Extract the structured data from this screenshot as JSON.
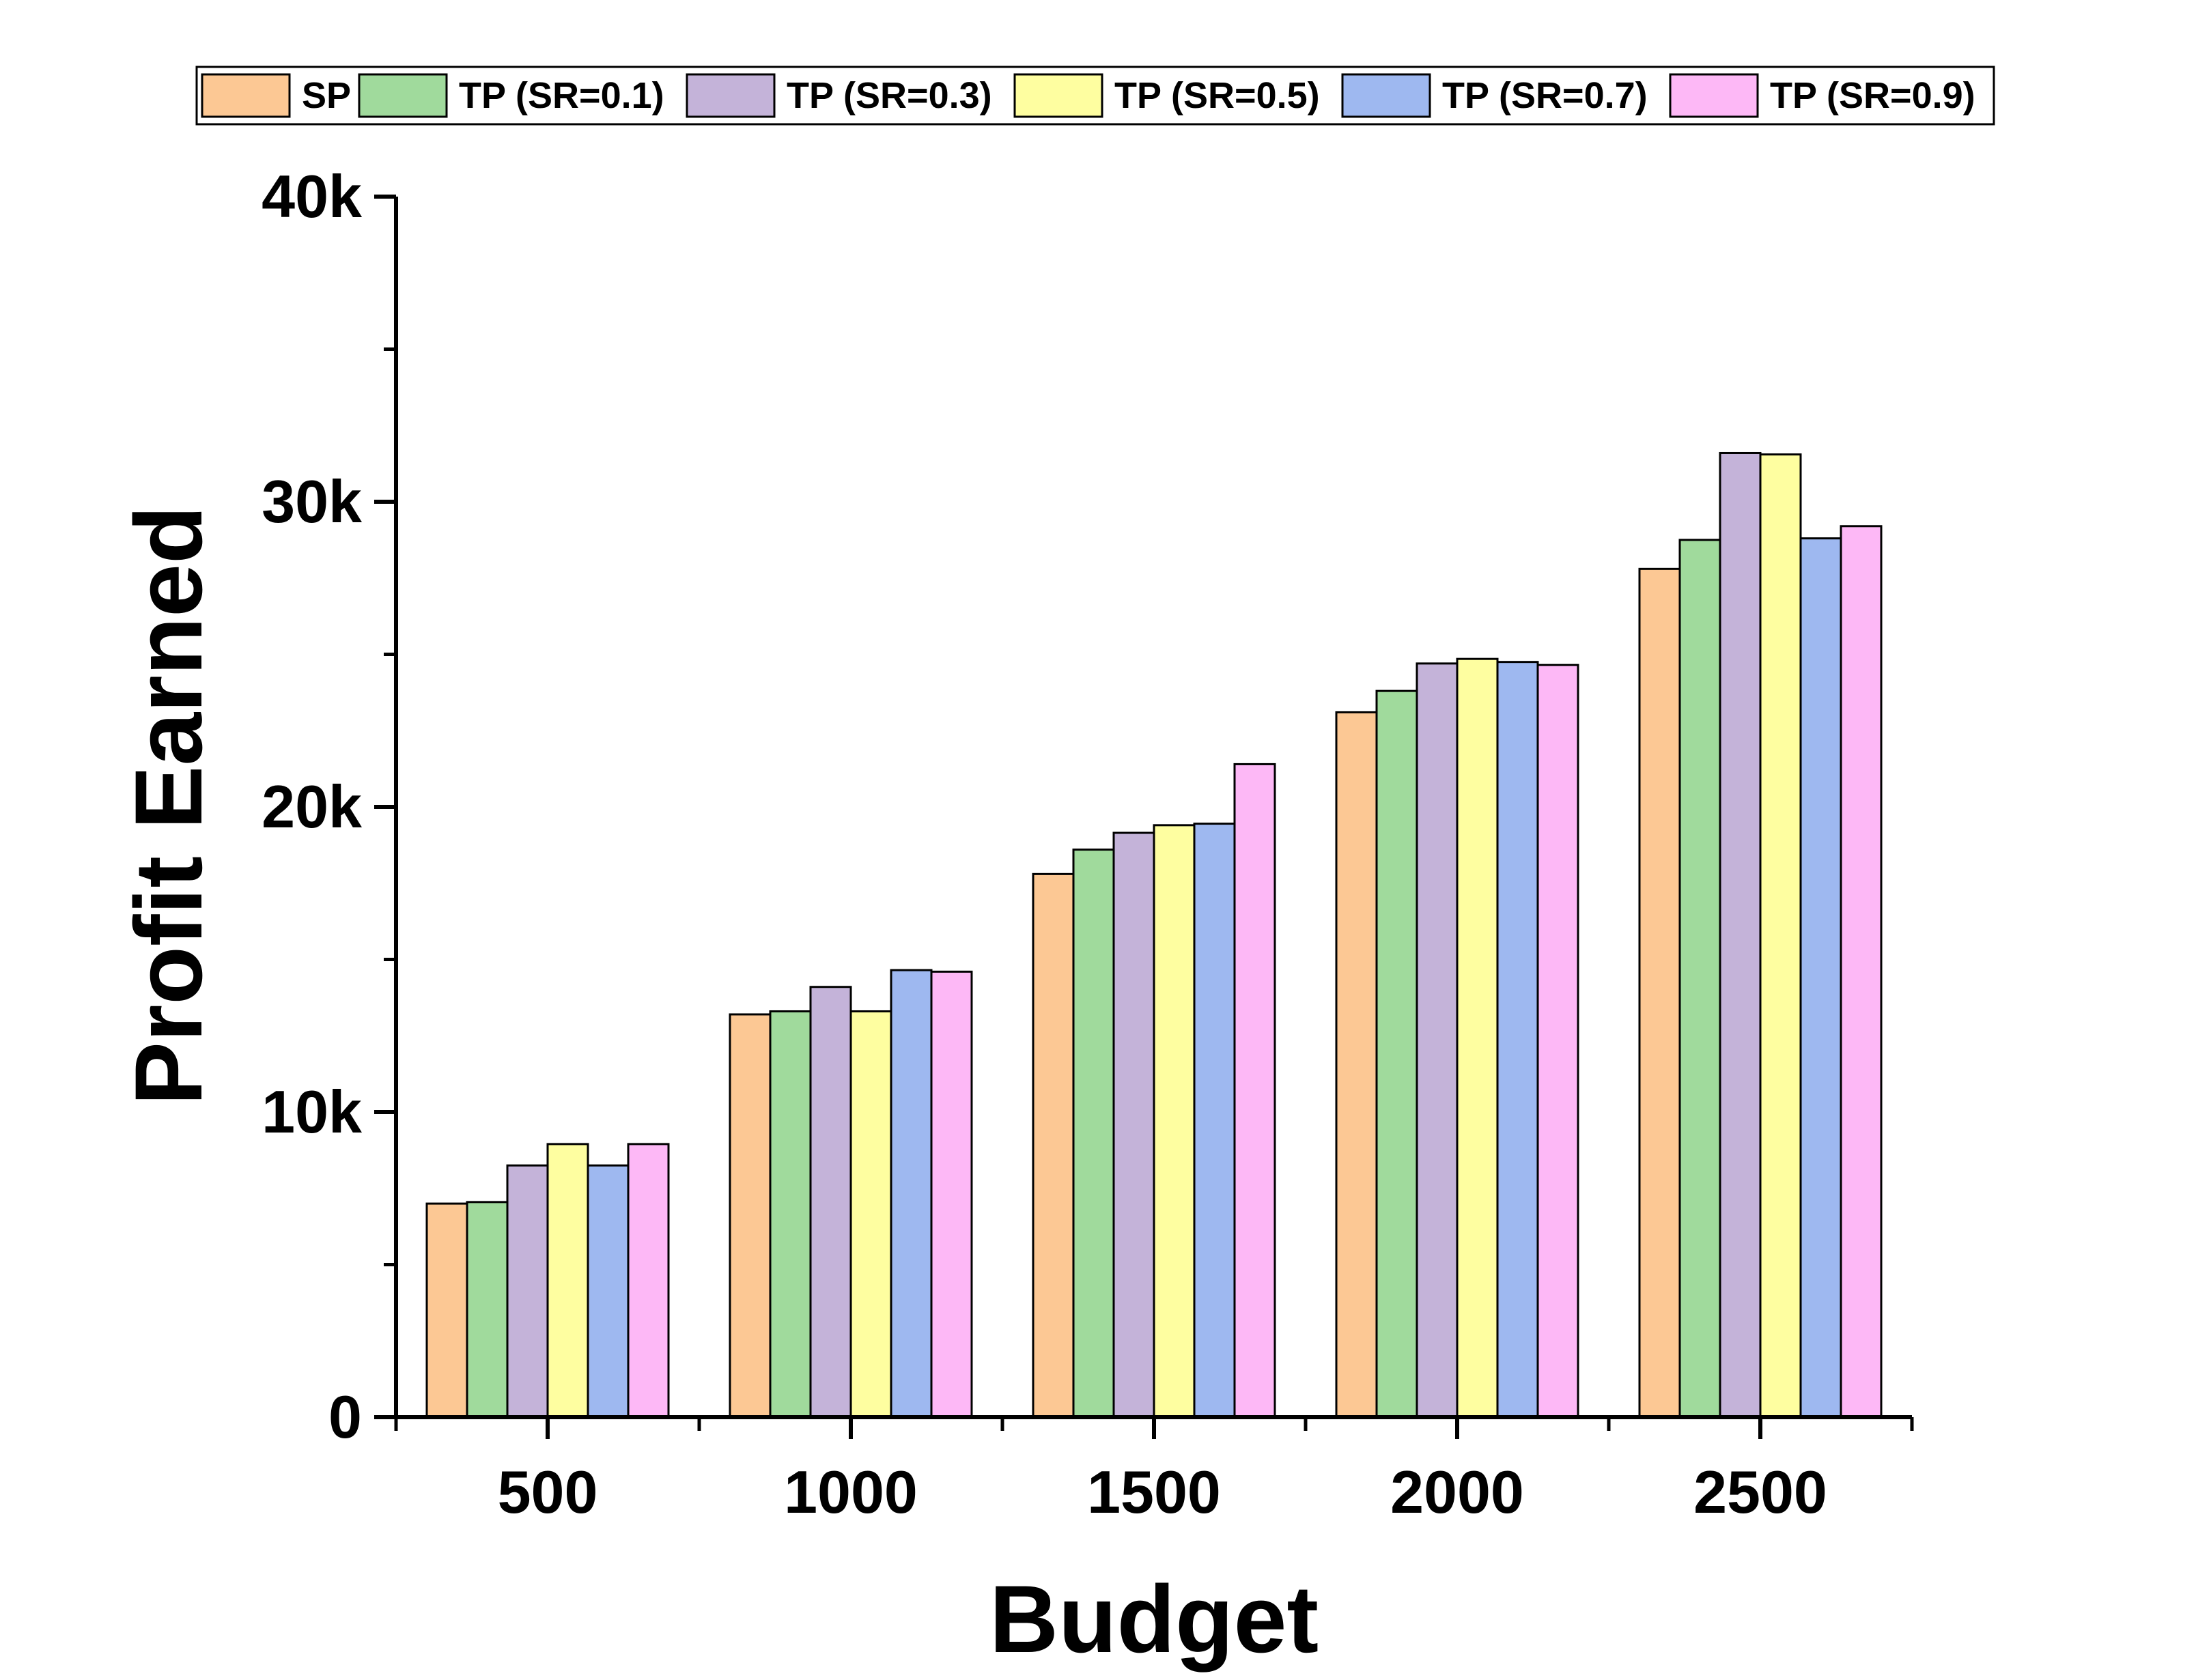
{
  "chart_data": {
    "type": "bar",
    "title": "",
    "xlabel": "Budget",
    "ylabel": "Profit Earned",
    "categories": [
      "500",
      "1000",
      "1500",
      "2000",
      "2500"
    ],
    "ylim": [
      0,
      40000
    ],
    "yticks": [
      {
        "value": 0,
        "label": "0"
      },
      {
        "value": 10000,
        "label": "10k"
      },
      {
        "value": 20000,
        "label": "20k"
      },
      {
        "value": 30000,
        "label": "30k"
      },
      {
        "value": 40000,
        "label": "40k"
      }
    ],
    "grid": false,
    "legend_position": "top",
    "series": [
      {
        "name": "SP",
        "color": "#FCC894",
        "values": [
          7000,
          13200,
          17800,
          23100,
          27800
        ]
      },
      {
        "name": "TP (SR=0.1)",
        "color": "#A0DA9C",
        "values": [
          7050,
          13300,
          18600,
          23800,
          28750
        ]
      },
      {
        "name": "TP (SR=0.3)",
        "color": "#C4B3D9",
        "values": [
          8250,
          14100,
          19150,
          24700,
          31600
        ]
      },
      {
        "name": "TP (SR=0.5)",
        "color": "#FEFEA0",
        "values": [
          8950,
          13300,
          19400,
          24850,
          31550
        ]
      },
      {
        "name": "TP (SR=0.7)",
        "color": "#9EB8F0",
        "values": [
          8250,
          14650,
          19450,
          24750,
          28800
        ]
      },
      {
        "name": "TP (SR=0.9)",
        "color": "#FDB8F6",
        "values": [
          8950,
          14600,
          21400,
          24650,
          29200
        ]
      }
    ]
  }
}
